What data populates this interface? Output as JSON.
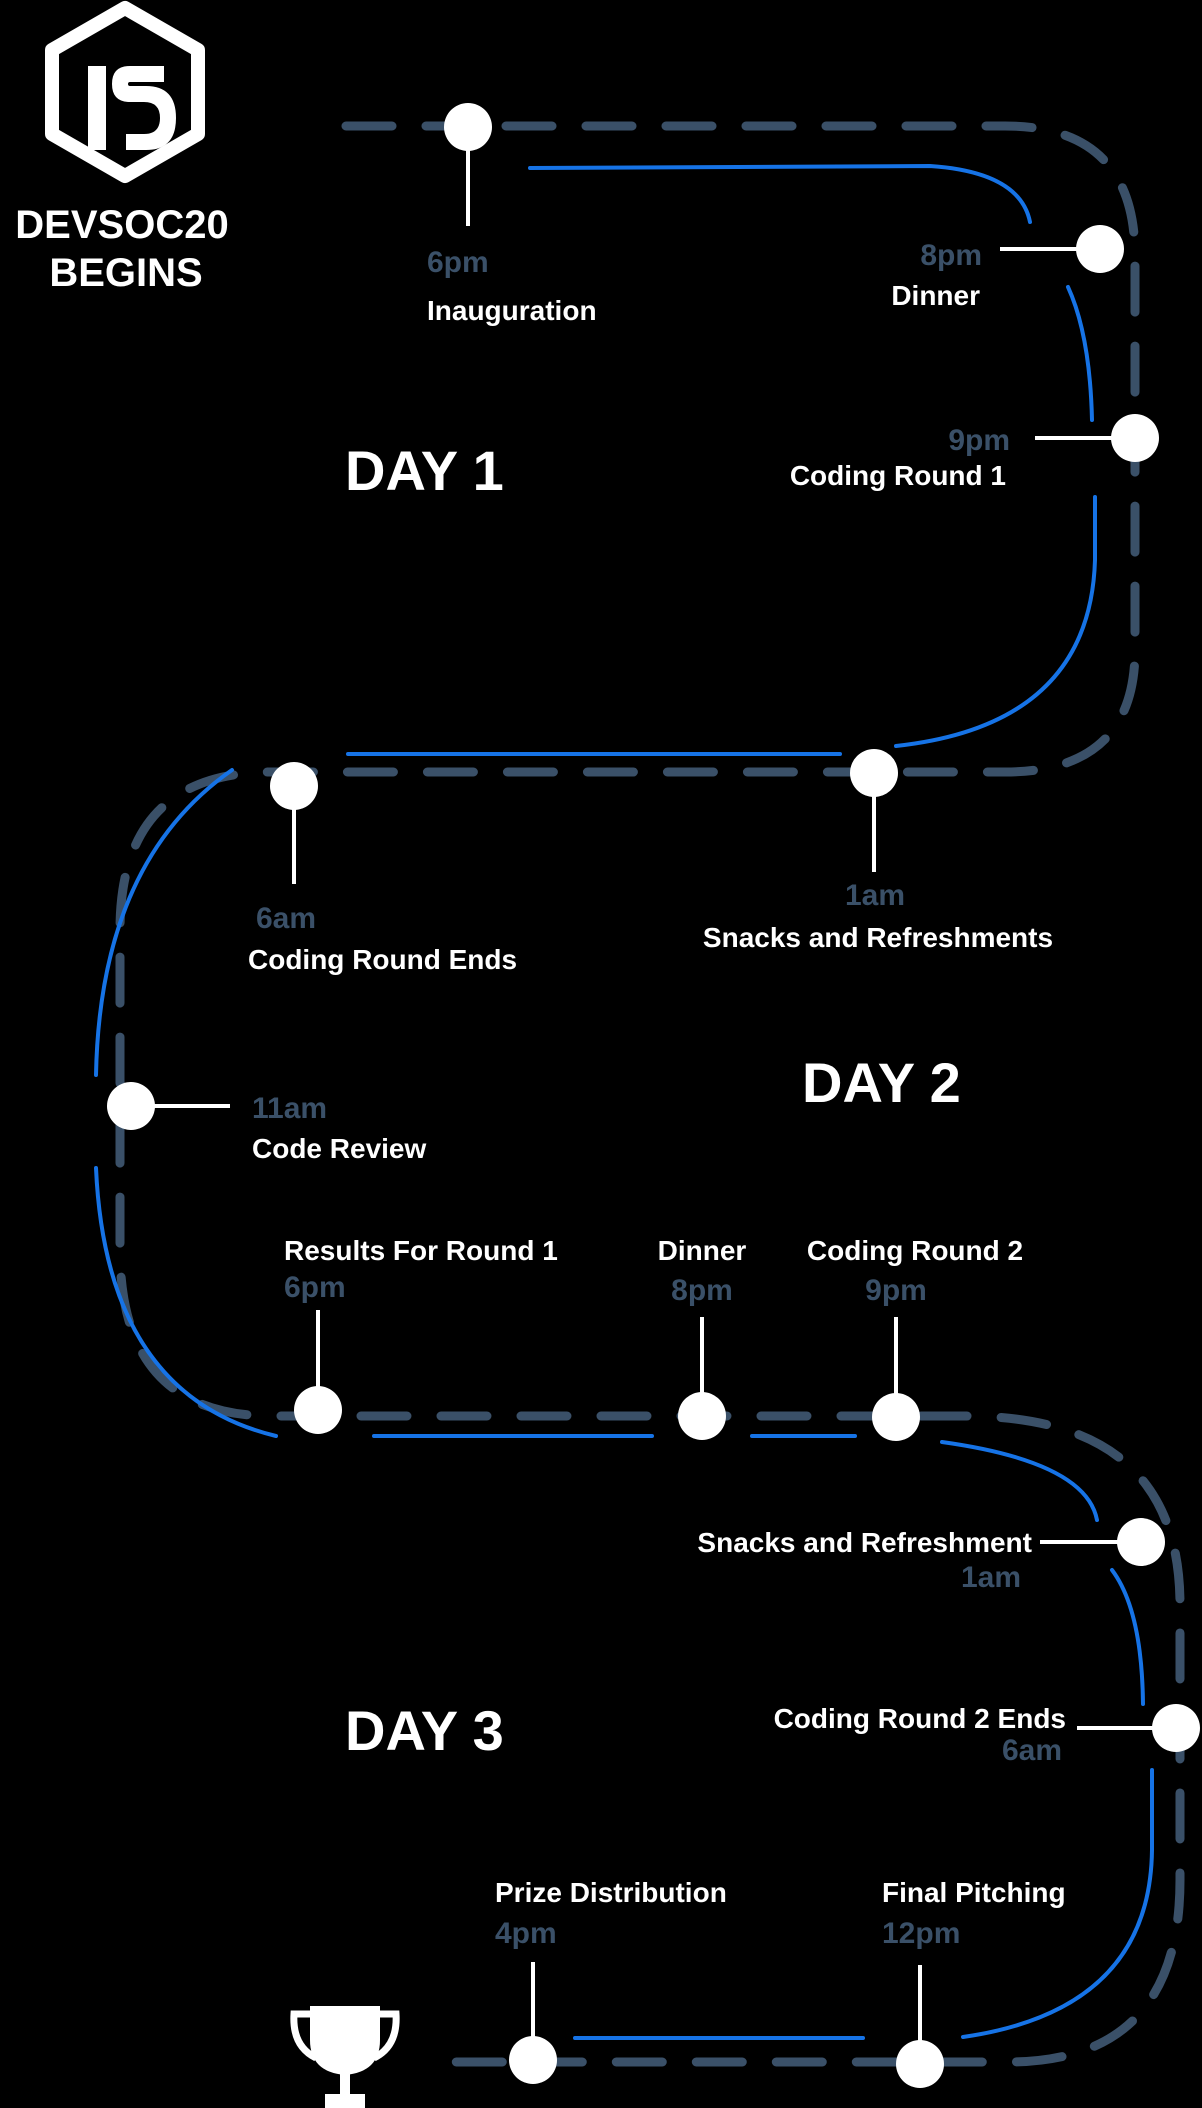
{
  "brand": {
    "line1": "DEVSOC20",
    "line2": "BEGINS"
  },
  "days": {
    "day1": "DAY 1",
    "day2": "DAY 2",
    "day3": "DAY 3"
  },
  "events": [
    {
      "time": "6pm",
      "label": "Inauguration"
    },
    {
      "time": "8pm",
      "label": "Dinner"
    },
    {
      "time": "9pm",
      "label": "Coding Round 1"
    },
    {
      "time": "1am",
      "label": "Snacks and Refreshments"
    },
    {
      "time": "6am",
      "label": "Coding Round Ends"
    },
    {
      "time": "11am",
      "label": "Code Review"
    },
    {
      "time": "6pm",
      "label": "Results For Round 1"
    },
    {
      "time": "8pm",
      "label": "Dinner"
    },
    {
      "time": "9pm",
      "label": "Coding Round 2"
    },
    {
      "time": "1am",
      "label": "Snacks and Refreshment"
    },
    {
      "time": "6am",
      "label": "Coding Round 2 Ends"
    },
    {
      "time": "12pm",
      "label": "Final Pitching"
    },
    {
      "time": "4pm",
      "label": "Prize Distribution"
    }
  ],
  "icons": {
    "logo": "hexagon-ds-logo-icon",
    "trophy": "trophy-icon"
  },
  "colors": {
    "background": "#000000",
    "node": "#ffffff",
    "blue_line": "#1673e6",
    "dashed_line": "#3a5068",
    "time_text": "#3a5068",
    "label_text": "#ffffff"
  }
}
